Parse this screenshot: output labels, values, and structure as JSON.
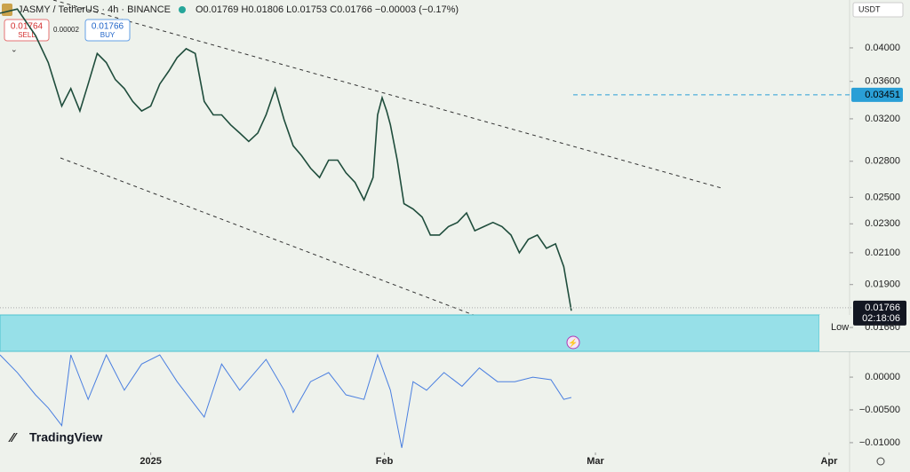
{
  "header": {
    "symbol": "JASMY / TetherUS · 4h · BINANCE",
    "open": "O0.01769",
    "high": "H0.01806",
    "low": "L0.01753",
    "close": "C0.01766",
    "change": "−0.00003 (−0.17%)",
    "currency": "USDT"
  },
  "trade": {
    "sell_price": "0.01764",
    "sell": "SELL",
    "spread": "0.00002",
    "buy_price": "0.01766",
    "buy": "BUY"
  },
  "brand": "TradingView",
  "chart_data": [
    {
      "type": "line",
      "log": true,
      "xlim": [
        -20,
        92.6
      ],
      "ylim": [
        0.0154,
        0.0465
      ],
      "yticks": [
        {
          "value": 0.04,
          "label": "0.04000"
        },
        {
          "value": 0.036,
          "label": "0.03600"
        },
        {
          "value": 0.032,
          "label": "0.03200"
        },
        {
          "value": 0.028,
          "label": "0.02800"
        },
        {
          "value": 0.025,
          "label": "0.02500"
        },
        {
          "value": 0.023,
          "label": "0.02300"
        },
        {
          "value": 0.021,
          "label": "0.02100"
        },
        {
          "value": 0.019,
          "label": "0.01900"
        }
      ],
      "x": [
        -20,
        -17.7,
        -15.3,
        -13.6,
        -11.8,
        -10.6,
        -9.4,
        -8.3,
        -7.1,
        -5.9,
        -4.7,
        -3.5,
        -2.4,
        -1.2,
        0,
        1.2,
        2.4,
        3.5,
        4.7,
        5.9,
        7.1,
        8.3,
        9.4,
        10.6,
        11.8,
        13,
        14.2,
        15.3,
        16.5,
        17.7,
        18.9,
        20,
        21.2,
        22.4,
        23.6,
        24.8,
        25.9,
        27.1,
        28.3,
        29.5,
        30.1,
        30.7,
        31.3,
        31.8,
        32.7,
        33.6,
        34.8,
        36,
        37.1,
        38.3,
        39.5,
        40.7,
        41.9,
        43,
        44.2,
        45.4,
        46.6,
        47.8,
        48.9,
        50.1,
        51.3,
        52.5,
        53.7,
        54.8,
        55.8
      ],
      "series": [
        {
          "color": "#1f4d3c",
          "values": [
            0.0446,
            0.0452,
            0.0416,
            0.0382,
            0.0333,
            0.0352,
            0.0328,
            0.0357,
            0.0393,
            0.0382,
            0.0362,
            0.0352,
            0.0338,
            0.0328,
            0.0333,
            0.0357,
            0.0372,
            0.0388,
            0.0399,
            0.0393,
            0.0338,
            0.0324,
            0.0324,
            0.0314,
            0.0306,
            0.0298,
            0.0306,
            0.0324,
            0.0352,
            0.0319,
            0.0294,
            0.0285,
            0.0274,
            0.0266,
            0.0281,
            0.0281,
            0.027,
            0.0262,
            0.0248,
            0.0266,
            0.0324,
            0.0342,
            0.0328,
            0.0314,
            0.0281,
            0.0245,
            0.0241,
            0.0235,
            0.0222,
            0.0222,
            0.0228,
            0.0231,
            0.0238,
            0.0225,
            0.0228,
            0.0231,
            0.0228,
            0.0222,
            0.021,
            0.0219,
            0.0222,
            0.0213,
            0.0216,
            0.0201,
            0.0175
          ]
        }
      ],
      "alert": {
        "value": 0.03451,
        "label": "0.03451",
        "color": "#2a9fd6"
      },
      "last": {
        "value": 0.01766,
        "label": "0.01766",
        "countdown": "02:18:06"
      },
      "low_zone": {
        "name": "Low",
        "level": {
          "value": 0.0166,
          "label": "0.01660"
        }
      }
    },
    {
      "type": "line",
      "xlim": [
        -20,
        92.6
      ],
      "ylim": [
        -0.0115,
        0.0038
      ],
      "yticks": [
        {
          "value": 0,
          "label": "0.00000"
        },
        {
          "value": -0.005,
          "label": "−0.00500"
        },
        {
          "value": -0.01,
          "label": "−0.01000"
        }
      ],
      "xticks": [
        {
          "value": 0,
          "label": "2025"
        },
        {
          "value": 31,
          "label": "Feb"
        },
        {
          "value": 59,
          "label": "Mar"
        },
        {
          "value": 90,
          "label": "Apr"
        }
      ],
      "x": [
        -20,
        -17.7,
        -15.3,
        -13.6,
        -11.8,
        -10.6,
        -8.3,
        -5.9,
        -3.5,
        -1.2,
        1.2,
        3.5,
        7.1,
        9.4,
        11.8,
        15.3,
        17.7,
        18.9,
        21.2,
        23.6,
        25.9,
        28.3,
        30.1,
        31.8,
        33.3,
        34.8,
        36.6,
        38.9,
        41.3,
        43.6,
        46,
        48.3,
        50.7,
        53.1,
        54.8,
        55.8
      ],
      "series": [
        {
          "color": "#4a7fe0",
          "values": [
            0.0034,
            0.0007,
            -0.0027,
            -0.0047,
            -0.0074,
            0.0034,
            -0.0034,
            0.0034,
            -0.002,
            0.002,
            0.0034,
            -0.0007,
            -0.0061,
            0.002,
            -0.002,
            0.0027,
            -0.002,
            -0.0054,
            -0.0007,
            0.0007,
            -0.0027,
            -0.0034,
            0.0034,
            -0.002,
            -0.0108,
            -0.0007,
            -0.002,
            0.0007,
            -0.0014,
            0.0014,
            -0.0007,
            -0.0007,
            0,
            -0.0004,
            -0.0034,
            -0.0031
          ]
        }
      ]
    }
  ]
}
